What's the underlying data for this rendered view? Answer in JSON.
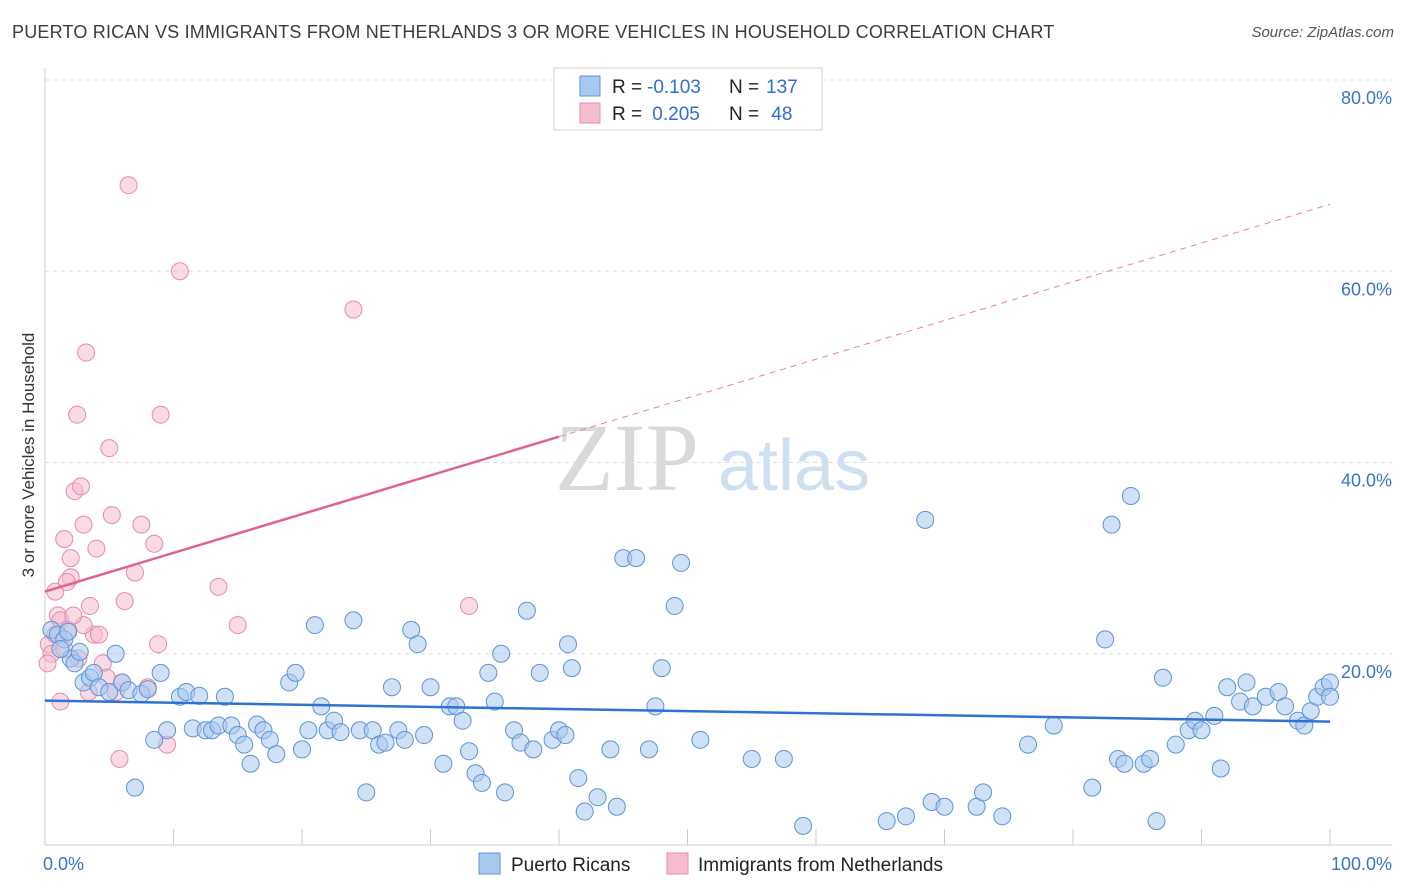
{
  "title": "PUERTO RICAN VS IMMIGRANTS FROM NETHERLANDS 3 OR MORE VEHICLES IN HOUSEHOLD CORRELATION CHART",
  "source": "Source: ZipAtlas.com",
  "watermark": {
    "part1": "ZIP",
    "part2": "atlas"
  },
  "legend": {
    "rows": [
      {
        "r_label": "R =",
        "r_value": "-0.103",
        "n_label": "N =",
        "n_value": "137"
      },
      {
        "r_label": "R =",
        "r_value": " 0.205",
        "n_label": "N =",
        "n_value": " 48"
      }
    ]
  },
  "bottom_legend": [
    "Puerto Ricans",
    "Immigrants from Netherlands"
  ],
  "colors": {
    "blue_fill": "#a9c8ef",
    "blue_stroke": "#5b93d9",
    "blue_line": "#2e72d2",
    "pink_fill": "#f6bcd0",
    "pink_stroke": "#e58aab",
    "pink_line": "#e0638f",
    "grid": "#dedede",
    "tick_text": "#3a73c9"
  },
  "chart_data": {
    "type": "scatter",
    "title": "PUERTO RICAN VS IMMIGRANTS FROM NETHERLANDS 3 OR MORE VEHICLES IN HOUSEHOLD CORRELATION CHART",
    "xlabel": "",
    "ylabel": "3 or more Vehicles in Household",
    "xlim": [
      0,
      100
    ],
    "ylim": [
      0,
      80
    ],
    "x_tick_labels": [
      "0.0%",
      "100.0%"
    ],
    "y_ticks": [
      20,
      40,
      60,
      80
    ],
    "y_tick_labels": [
      "20.0%",
      "40.0%",
      "60.0%",
      "80.0%"
    ],
    "grid": true,
    "legend_position": "top-center",
    "series": [
      {
        "name": "Puerto Ricans",
        "color": "#a9c8ef",
        "trend": {
          "x0": 0,
          "y0": 15.1,
          "x1": 100,
          "y1": 12.9
        },
        "points": [
          [
            0.5,
            22.5
          ],
          [
            1.0,
            22.0
          ],
          [
            1.5,
            21.5
          ],
          [
            1.8,
            22.3
          ],
          [
            2.0,
            19.5
          ],
          [
            2.3,
            19.0
          ],
          [
            3.0,
            17.0
          ],
          [
            3.5,
            17.5
          ],
          [
            3.8,
            18.0
          ],
          [
            4.2,
            16.5
          ],
          [
            5.0,
            16.0
          ],
          [
            5.5,
            20.0
          ],
          [
            6.0,
            17.0
          ],
          [
            6.5,
            16.2
          ],
          [
            7.0,
            6.0
          ],
          [
            7.5,
            15.8
          ],
          [
            8.0,
            16.3
          ],
          [
            8.5,
            11.0
          ],
          [
            9.0,
            18.0
          ],
          [
            9.5,
            12.0
          ],
          [
            10.5,
            15.5
          ],
          [
            11.0,
            16.0
          ],
          [
            11.5,
            12.2
          ],
          [
            12.0,
            15.6
          ],
          [
            12.5,
            12.0
          ],
          [
            13.0,
            12.0
          ],
          [
            13.5,
            12.5
          ],
          [
            14.0,
            15.5
          ],
          [
            14.5,
            12.5
          ],
          [
            15.0,
            11.5
          ],
          [
            15.5,
            10.5
          ],
          [
            16.0,
            8.5
          ],
          [
            16.5,
            12.6
          ],
          [
            17.0,
            12.0
          ],
          [
            17.5,
            11.0
          ],
          [
            18.0,
            9.5
          ],
          [
            19.0,
            17.0
          ],
          [
            19.5,
            18.0
          ],
          [
            20.0,
            10.0
          ],
          [
            20.5,
            12.0
          ],
          [
            21.0,
            23.0
          ],
          [
            21.5,
            14.5
          ],
          [
            22.0,
            12.0
          ],
          [
            22.5,
            13.0
          ],
          [
            23.0,
            11.8
          ],
          [
            24.0,
            23.5
          ],
          [
            24.5,
            12.0
          ],
          [
            25.0,
            5.5
          ],
          [
            25.5,
            12.0
          ],
          [
            26.0,
            10.5
          ],
          [
            26.5,
            10.7
          ],
          [
            27.0,
            16.5
          ],
          [
            27.5,
            12.0
          ],
          [
            28.0,
            11.0
          ],
          [
            28.5,
            22.5
          ],
          [
            29.0,
            21.0
          ],
          [
            29.5,
            11.5
          ],
          [
            30.0,
            16.5
          ],
          [
            31.0,
            8.5
          ],
          [
            31.5,
            14.5
          ],
          [
            32.0,
            14.5
          ],
          [
            32.5,
            13.0
          ],
          [
            33.0,
            9.8
          ],
          [
            33.5,
            7.5
          ],
          [
            34.0,
            6.5
          ],
          [
            34.5,
            18.0
          ],
          [
            35.0,
            15.0
          ],
          [
            35.5,
            20.0
          ],
          [
            35.8,
            5.5
          ],
          [
            36.5,
            12.0
          ],
          [
            37.0,
            10.7
          ],
          [
            37.5,
            24.5
          ],
          [
            38.0,
            10.0
          ],
          [
            38.5,
            18.0
          ],
          [
            39.5,
            11.0
          ],
          [
            40.0,
            12.0
          ],
          [
            40.5,
            11.5
          ],
          [
            40.7,
            21.0
          ],
          [
            41.0,
            18.5
          ],
          [
            41.5,
            7.0
          ],
          [
            42.0,
            3.5
          ],
          [
            43.0,
            5.0
          ],
          [
            44.0,
            10.0
          ],
          [
            44.5,
            4.0
          ],
          [
            45.0,
            30.0
          ],
          [
            46.0,
            30.0
          ],
          [
            47.0,
            10.0
          ],
          [
            47.5,
            14.5
          ],
          [
            48.0,
            18.5
          ],
          [
            49.0,
            25.0
          ],
          [
            49.5,
            29.5
          ],
          [
            51.0,
            11.0
          ],
          [
            55.0,
            9.0
          ],
          [
            57.5,
            9.0
          ],
          [
            65.5,
            2.5
          ],
          [
            67.0,
            3.0
          ],
          [
            68.5,
            34.0
          ],
          [
            69.0,
            4.5
          ],
          [
            70.0,
            4.0
          ],
          [
            72.5,
            4.0
          ],
          [
            73.0,
            5.5
          ],
          [
            74.5,
            3.0
          ],
          [
            76.5,
            10.5
          ],
          [
            78.5,
            12.5
          ],
          [
            81.5,
            6.0
          ],
          [
            82.5,
            21.5
          ],
          [
            83.0,
            33.5
          ],
          [
            83.5,
            9.0
          ],
          [
            84.5,
            36.5
          ],
          [
            85.5,
            8.5
          ],
          [
            86.0,
            9.0
          ],
          [
            87.0,
            17.5
          ],
          [
            88.0,
            10.5
          ],
          [
            89.0,
            12.0
          ],
          [
            89.5,
            13.0
          ],
          [
            90.0,
            12.0
          ],
          [
            91.0,
            13.5
          ],
          [
            91.5,
            8.0
          ],
          [
            92.0,
            16.5
          ],
          [
            93.0,
            15.0
          ],
          [
            93.5,
            17.0
          ],
          [
            94.0,
            14.5
          ],
          [
            95.0,
            15.5
          ],
          [
            96.0,
            16.0
          ],
          [
            96.5,
            14.5
          ],
          [
            97.5,
            13.0
          ],
          [
            98.0,
            12.5
          ],
          [
            98.5,
            14.0
          ],
          [
            99.0,
            15.5
          ],
          [
            99.5,
            16.5
          ],
          [
            100.0,
            17.0
          ],
          [
            100.0,
            15.5
          ],
          [
            84.0,
            8.5
          ],
          [
            86.5,
            2.5
          ],
          [
            59.0,
            2.0
          ],
          [
            1.2,
            20.5
          ],
          [
            2.7,
            20.2
          ]
        ]
      },
      {
        "name": "Immigrants from Netherlands",
        "color": "#f6bcd0",
        "trend": {
          "x0": 0,
          "y0": 26.5,
          "x1": 40,
          "y1": 42.7,
          "dashed_to": {
            "x": 100,
            "y": 67.0
          }
        },
        "points": [
          [
            0.3,
            21.0
          ],
          [
            0.5,
            20.0
          ],
          [
            0.8,
            22.0
          ],
          [
            1.0,
            24.0
          ],
          [
            1.2,
            23.5
          ],
          [
            1.5,
            20.5
          ],
          [
            1.8,
            22.5
          ],
          [
            2.0,
            28.0
          ],
          [
            2.3,
            37.0
          ],
          [
            2.5,
            45.0
          ],
          [
            2.8,
            37.5
          ],
          [
            3.0,
            33.5
          ],
          [
            3.2,
            51.5
          ],
          [
            3.5,
            25.0
          ],
          [
            3.8,
            22.0
          ],
          [
            4.0,
            31.0
          ],
          [
            4.2,
            22.0
          ],
          [
            4.5,
            19.0
          ],
          [
            5.0,
            41.5
          ],
          [
            5.2,
            34.5
          ],
          [
            5.5,
            16.0
          ],
          [
            5.8,
            9.0
          ],
          [
            6.0,
            17.0
          ],
          [
            6.2,
            25.5
          ],
          [
            6.5,
            69.0
          ],
          [
            7.0,
            28.5
          ],
          [
            7.5,
            33.5
          ],
          [
            8.0,
            16.5
          ],
          [
            8.5,
            31.5
          ],
          [
            8.8,
            21.0
          ],
          [
            9.0,
            45.0
          ],
          [
            9.5,
            10.5
          ],
          [
            10.5,
            60.0
          ],
          [
            13.5,
            27.0
          ],
          [
            15.0,
            23.0
          ],
          [
            24.0,
            56.0
          ],
          [
            33.0,
            25.0
          ],
          [
            1.5,
            32.0
          ],
          [
            2.0,
            30.0
          ],
          [
            3.0,
            23.0
          ],
          [
            0.8,
            26.5
          ],
          [
            1.7,
            27.5
          ],
          [
            2.6,
            19.5
          ],
          [
            1.2,
            15.0
          ],
          [
            0.2,
            19.0
          ],
          [
            2.2,
            24.0
          ],
          [
            4.8,
            17.5
          ],
          [
            3.4,
            16.0
          ]
        ]
      }
    ]
  }
}
